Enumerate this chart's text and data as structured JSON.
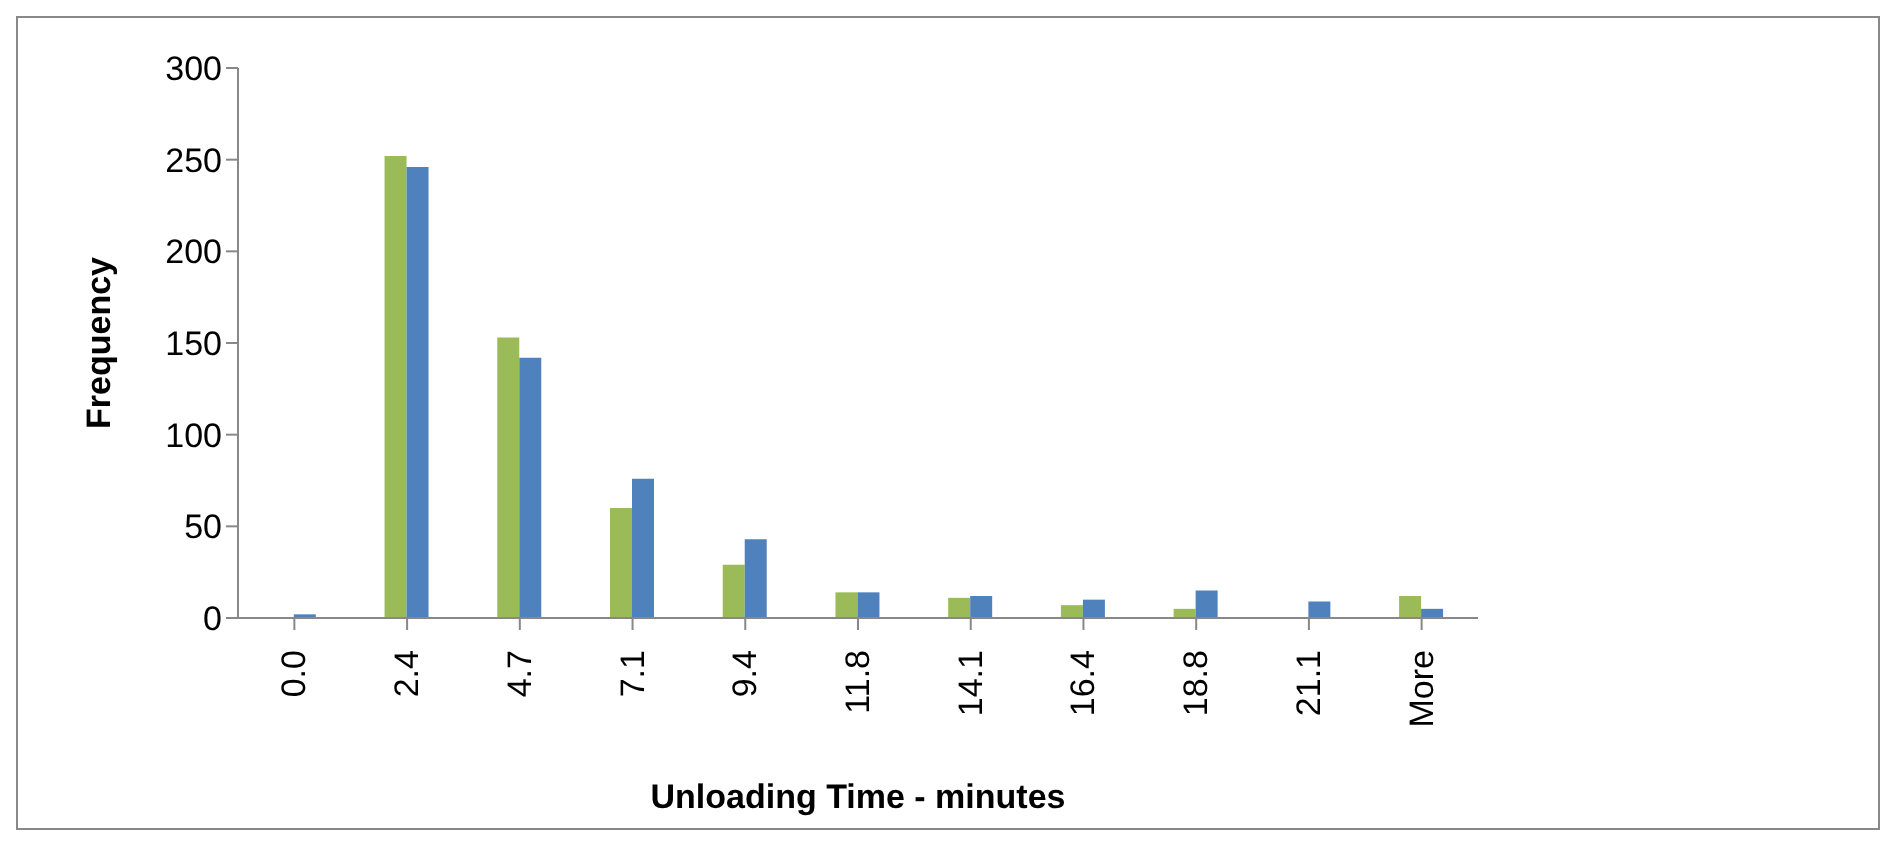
{
  "chart_data": {
    "type": "bar",
    "xlabel": "Unloading Time - minutes",
    "ylabel": "Frequency",
    "categories": [
      "0.0",
      "2.4",
      "4.7",
      "7.1",
      "9.4",
      "11.8",
      "14.1",
      "16.4",
      "18.8",
      "21.1",
      "More"
    ],
    "series": [
      {
        "color": "#9bbb59",
        "values": [
          0,
          252,
          153,
          60,
          29,
          14,
          11,
          7,
          5,
          0,
          12
        ]
      },
      {
        "color": "#4f81bd",
        "values": [
          2,
          246,
          142,
          76,
          43,
          14,
          12,
          10,
          15,
          9,
          5
        ]
      }
    ],
    "ylim": [
      0,
      300
    ],
    "yticks": [
      0,
      50,
      100,
      150,
      200,
      250,
      300
    ],
    "grid": false,
    "legend": false
  }
}
